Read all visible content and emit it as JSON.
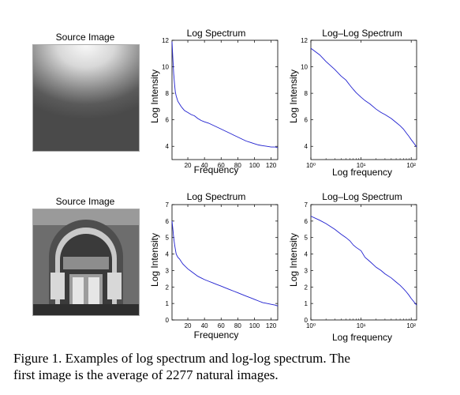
{
  "figure": {
    "caption_line1": "Figure 1. Examples of log spectrum and log-log spectrum.  The",
    "caption_line2": "first image is the average of 2277 natural images."
  },
  "rows": [
    {
      "source_title": "Source Image",
      "source_description": "blurry average: bright top fading to dark gray"
    },
    {
      "source_title": "Source Image",
      "source_description": "stone arched entrance with revolving door"
    }
  ],
  "chart_data": [
    {
      "type": "line",
      "title": "Log Spectrum",
      "xlabel": "Frequency",
      "ylabel": "Log Intensity",
      "xlim": [
        1,
        128
      ],
      "ylim": [
        3,
        12
      ],
      "xticks": [
        20,
        40,
        60,
        80,
        100,
        120
      ],
      "yticks": [
        4,
        6,
        8,
        10,
        12
      ],
      "xscale": "linear",
      "color": "#1f1fcf",
      "series": [
        {
          "x": [
            1,
            2,
            3,
            4,
            5,
            6,
            8,
            10,
            12,
            14,
            16,
            20,
            24,
            28,
            32,
            36,
            40,
            45,
            50,
            55,
            60,
            65,
            70,
            75,
            80,
            85,
            90,
            95,
            100,
            105,
            110,
            115,
            120,
            125,
            128
          ],
          "y": [
            11.9,
            10.6,
            9.5,
            8.7,
            8.1,
            7.8,
            7.4,
            7.2,
            7.0,
            6.85,
            6.7,
            6.55,
            6.4,
            6.3,
            6.1,
            5.95,
            5.85,
            5.75,
            5.6,
            5.45,
            5.3,
            5.15,
            5.0,
            4.85,
            4.7,
            4.55,
            4.4,
            4.3,
            4.2,
            4.1,
            4.05,
            4.0,
            3.95,
            3.95,
            3.9
          ]
        }
      ]
    },
    {
      "type": "line",
      "title": "Log–Log Spectrum",
      "xlabel": "Log frequency",
      "ylabel": "Log Intensity",
      "xlim": [
        1,
        128
      ],
      "ylim": [
        3,
        12
      ],
      "xticks": [
        1,
        10,
        100
      ],
      "xticklabels": [
        "10⁰",
        "10¹",
        "10²"
      ],
      "yticks": [
        4,
        6,
        8,
        10,
        12
      ],
      "xscale": "log",
      "color": "#1f1fcf",
      "series": [
        {
          "x": [
            1,
            1.5,
            2,
            3,
            4,
            5,
            6,
            7,
            8,
            10,
            12,
            15,
            20,
            25,
            30,
            40,
            50,
            60,
            70,
            80,
            90,
            100,
            110,
            120,
            128
          ],
          "y": [
            11.4,
            10.9,
            10.4,
            9.8,
            9.3,
            9.0,
            8.6,
            8.3,
            8.05,
            7.7,
            7.45,
            7.2,
            6.8,
            6.55,
            6.4,
            6.1,
            5.8,
            5.55,
            5.3,
            5.0,
            4.75,
            4.5,
            4.3,
            4.1,
            3.95
          ]
        }
      ]
    },
    {
      "type": "line",
      "title": "Log Spectrum",
      "xlabel": "Frequency",
      "ylabel": "Log Intensity",
      "xlim": [
        1,
        128
      ],
      "ylim": [
        0,
        7
      ],
      "xticks": [
        20,
        40,
        60,
        80,
        100,
        120
      ],
      "yticks": [
        0,
        1,
        2,
        3,
        4,
        5,
        6,
        7
      ],
      "xscale": "linear",
      "color": "#1f1fcf",
      "series": [
        {
          "x": [
            1,
            2,
            3,
            4,
            5,
            6,
            8,
            10,
            12,
            14,
            16,
            20,
            24,
            28,
            32,
            36,
            40,
            45,
            50,
            55,
            60,
            65,
            70,
            75,
            80,
            85,
            90,
            95,
            100,
            105,
            110,
            115,
            120,
            125,
            128
          ],
          "y": [
            6.0,
            5.5,
            5.0,
            4.6,
            4.3,
            4.0,
            3.8,
            3.7,
            3.55,
            3.4,
            3.3,
            3.1,
            2.95,
            2.8,
            2.65,
            2.55,
            2.45,
            2.35,
            2.25,
            2.15,
            2.05,
            1.95,
            1.85,
            1.75,
            1.65,
            1.55,
            1.45,
            1.35,
            1.25,
            1.15,
            1.05,
            1.0,
            0.95,
            0.9,
            0.85
          ]
        }
      ]
    },
    {
      "type": "line",
      "title": "Log–Log Spectrum",
      "xlabel": "Log frequency",
      "ylabel": "Log Intensity",
      "xlim": [
        1,
        128
      ],
      "ylim": [
        0,
        7
      ],
      "xticks": [
        1,
        10,
        100
      ],
      "xticklabels": [
        "10⁰",
        "10¹",
        "10²"
      ],
      "yticks": [
        0,
        1,
        2,
        3,
        4,
        5,
        6,
        7
      ],
      "xscale": "log",
      "color": "#1f1fcf",
      "series": [
        {
          "x": [
            1,
            1.5,
            2,
            3,
            4,
            5,
            6,
            7,
            8,
            10,
            12,
            15,
            20,
            25,
            30,
            40,
            50,
            60,
            70,
            80,
            90,
            100,
            110,
            120,
            128
          ],
          "y": [
            6.3,
            6.05,
            5.85,
            5.5,
            5.2,
            5.0,
            4.8,
            4.55,
            4.4,
            4.2,
            3.8,
            3.55,
            3.2,
            3.0,
            2.8,
            2.55,
            2.3,
            2.1,
            1.9,
            1.7,
            1.5,
            1.3,
            1.15,
            1.0,
            0.9
          ]
        }
      ]
    }
  ]
}
